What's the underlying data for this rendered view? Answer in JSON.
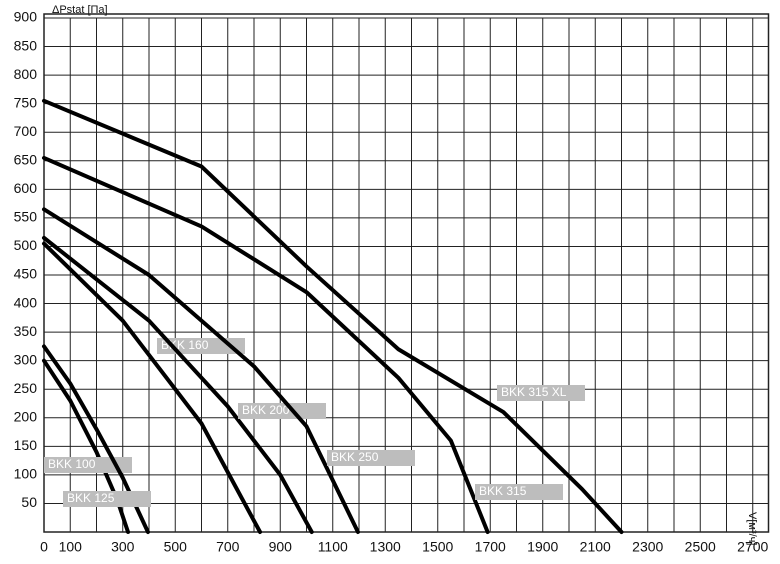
{
  "chart_data": {
    "type": "line",
    "y_label": "ΔPstat [Па]",
    "x_label": "V[м³/ч]",
    "xlim": [
      0,
      2760
    ],
    "ylim": [
      0,
      900
    ],
    "xticks": [
      0,
      100,
      300,
      500,
      700,
      900,
      1100,
      1300,
      1500,
      1700,
      1900,
      2100,
      2300,
      2500,
      2700
    ],
    "xminorticks": [
      200,
      400,
      600,
      800,
      1000,
      1200,
      1400,
      1600,
      1800,
      2000,
      2200,
      2400,
      2600
    ],
    "yticks": [
      50,
      100,
      150,
      200,
      250,
      300,
      350,
      400,
      450,
      500,
      550,
      600,
      650,
      700,
      750,
      800,
      850,
      900
    ],
    "grid": true,
    "series": [
      {
        "name": "BKK 100",
        "color": "#000000",
        "x": [
          0,
          100,
          200,
          280,
          320
        ],
        "values": [
          300,
          230,
          140,
          55,
          0
        ]
      },
      {
        "name": "BKK 125",
        "color": "#000000",
        "x": [
          0,
          100,
          200,
          300,
          396
        ],
        "values": [
          325,
          260,
          180,
          95,
          0
        ]
      },
      {
        "name": "BKK 160",
        "color": "#000000",
        "x": [
          0,
          300,
          600,
          823
        ],
        "values": [
          505,
          370,
          190,
          0
        ]
      },
      {
        "name": "BKK 200",
        "color": "#000000",
        "x": [
          0,
          400,
          700,
          900,
          1020
        ],
        "values": [
          515,
          370,
          220,
          100,
          0
        ]
      },
      {
        "name": "BKK 250",
        "color": "#000000",
        "x": [
          0,
          400,
          800,
          1000,
          1196
        ],
        "values": [
          565,
          450,
          290,
          185,
          0
        ]
      },
      {
        "name": "BKK 315",
        "color": "#000000",
        "x": [
          0,
          600,
          1000,
          1350,
          1550,
          1690
        ],
        "values": [
          655,
          535,
          420,
          270,
          160,
          0
        ]
      },
      {
        "name": "BKK 315 XL",
        "color": "#000000",
        "x": [
          0,
          600,
          1000,
          1350,
          1750,
          2050,
          2200
        ],
        "values": [
          755,
          640,
          465,
          320,
          210,
          75,
          0
        ]
      }
    ]
  }
}
